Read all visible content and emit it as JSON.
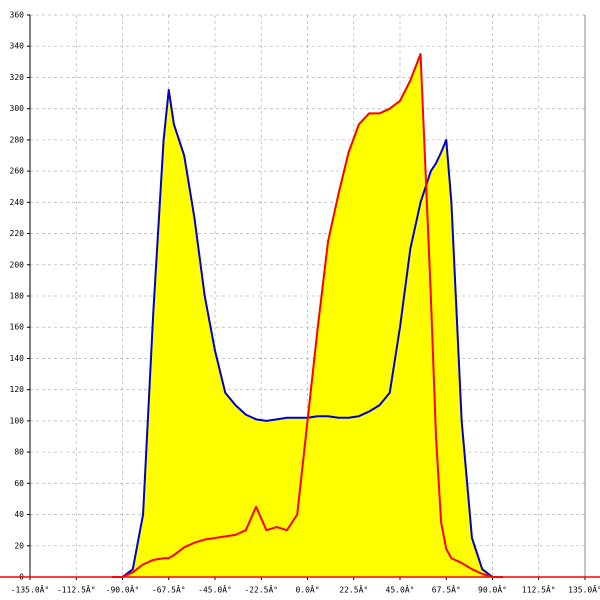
{
  "chart_data": {
    "type": "area",
    "x": [
      -95,
      -90,
      -85,
      -80,
      -75,
      -70,
      -67.5,
      -65,
      -60,
      -55,
      -50,
      -45,
      -40,
      -35,
      -30,
      -25,
      -20,
      -15,
      -10,
      -5,
      0,
      5,
      10,
      15,
      20,
      25,
      30,
      35,
      40,
      45,
      50,
      55,
      60,
      62.5,
      65,
      67.5,
      70,
      75,
      80,
      85,
      90,
      95
    ],
    "series": [
      {
        "color": "#0000cc",
        "values": [
          0,
          0,
          5,
          40,
          170,
          280,
          312,
          290,
          270,
          230,
          180,
          145,
          118,
          110,
          104,
          101,
          100,
          101,
          102,
          102,
          102,
          103,
          103,
          102,
          102,
          103,
          106,
          110,
          118,
          160,
          210,
          240,
          260,
          265,
          272,
          280,
          240,
          100,
          25,
          5,
          0,
          0
        ]
      },
      {
        "color": "#ff0000",
        "values": [
          0,
          0,
          3,
          8,
          11,
          12,
          12,
          14,
          19,
          22,
          24,
          25,
          26,
          27,
          30,
          45,
          30,
          32,
          30,
          40,
          100,
          160,
          215,
          245,
          272,
          290,
          297,
          297,
          300,
          305,
          318,
          335,
          180,
          90,
          35,
          18,
          12,
          9,
          5,
          2,
          0,
          0
        ]
      }
    ],
    "fill_color": "#ffff00",
    "xlim": [
      -135,
      135
    ],
    "xticks": [
      {
        "value": -135,
        "label": "-135.0Â°"
      },
      {
        "value": -112.5,
        "label": "-112.5Â°"
      },
      {
        "value": -90,
        "label": "-90.0Â°"
      },
      {
        "value": -67.5,
        "label": "-67.5Â°"
      },
      {
        "value": -45,
        "label": "-45.0Â°"
      },
      {
        "value": -22.5,
        "label": "-22.5Â°"
      },
      {
        "value": 0,
        "label": "0.0Â°"
      },
      {
        "value": 22.5,
        "label": "22.5Â°"
      },
      {
        "value": 45,
        "label": "45.0Â°"
      },
      {
        "value": 67.5,
        "label": "67.5Â°"
      },
      {
        "value": 90,
        "label": "90.0Â°"
      },
      {
        "value": 112.5,
        "label": "112.5Â°"
      },
      {
        "value": 135,
        "label": "135.0Â°"
      }
    ],
    "ylim": [
      0,
      360
    ],
    "yticks": [
      0,
      20,
      40,
      60,
      80,
      100,
      120,
      140,
      160,
      180,
      200,
      220,
      240,
      260,
      280,
      300,
      320,
      340,
      360
    ],
    "grid": true
  }
}
